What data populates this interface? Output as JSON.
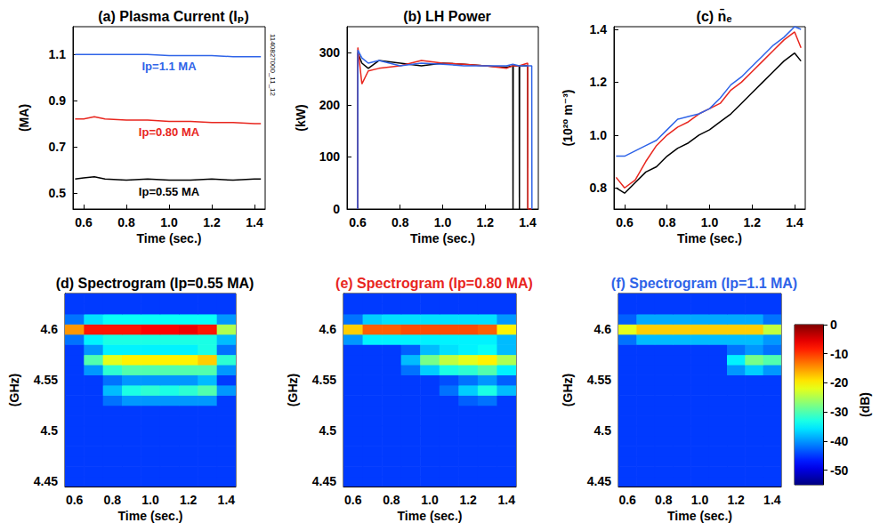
{
  "chart_data": [
    {
      "type": "line",
      "title": "(a) Plasma Current (Iₚ)",
      "xlabel": "Time (sec.)",
      "ylabel": "(MA)",
      "annotation": "1140827000_11_12",
      "x": [
        0.56,
        0.6,
        0.65,
        0.7,
        0.8,
        0.9,
        1.0,
        1.1,
        1.2,
        1.3,
        1.4,
        1.43
      ],
      "series": [
        {
          "name": "Ip=1.1 MA",
          "color": "#2f64e8",
          "values": [
            1.1,
            1.1,
            1.1,
            1.1,
            1.1,
            1.1,
            1.095,
            1.095,
            1.095,
            1.09,
            1.09,
            1.09
          ]
        },
        {
          "name": "Ip=0.80 MA",
          "color": "#e8261e",
          "values": [
            0.82,
            0.82,
            0.83,
            0.82,
            0.815,
            0.815,
            0.81,
            0.81,
            0.805,
            0.805,
            0.8,
            0.8
          ]
        },
        {
          "name": "Ip=0.55 MA",
          "color": "#000000",
          "values": [
            0.56,
            0.565,
            0.57,
            0.56,
            0.555,
            0.56,
            0.555,
            0.555,
            0.56,
            0.555,
            0.56,
            0.56
          ]
        }
      ],
      "xlim": [
        0.55,
        1.45
      ],
      "xticks": [
        0.6,
        0.8,
        {
          "value": 1,
          "label": "1.0"
        },
        1.2,
        1.4
      ],
      "ylim": [
        0.43,
        1.22
      ],
      "yticks": [
        0.5,
        0.7,
        0.9,
        1.1
      ],
      "grid": false
    },
    {
      "type": "line",
      "title": "(b) LH Power",
      "xlabel": "Time (sec.)",
      "ylabel": "(kW)",
      "x": [
        0.6,
        0.601,
        0.62,
        0.65,
        0.7,
        0.8,
        0.9,
        1.0,
        1.1,
        1.2,
        1.3,
        1.33,
        1.331,
        1.332,
        1.36,
        1.361,
        1.362,
        1.4,
        1.401,
        1.419,
        1.42
      ],
      "series": [
        {
          "color": "#000000",
          "values": [
            0,
            300,
            280,
            270,
            285,
            280,
            275,
            280,
            278,
            275,
            272,
            275,
            0,
            275,
            275,
            0,
            275,
            275,
            0,
            0,
            0
          ]
        },
        {
          "color": "#e8261e",
          "values": [
            0,
            310,
            240,
            265,
            270,
            275,
            285,
            280,
            278,
            275,
            270,
            275,
            275,
            275,
            275,
            275,
            275,
            280,
            0,
            0,
            0
          ]
        },
        {
          "color": "#2f64e8",
          "values": [
            0,
            305,
            290,
            280,
            285,
            275,
            280,
            278,
            275,
            275,
            275,
            278,
            278,
            278,
            275,
            275,
            275,
            275,
            275,
            275,
            0
          ]
        }
      ],
      "xlim": [
        0.55,
        1.45
      ],
      "xticks": [
        0.6,
        0.8,
        {
          "value": 1,
          "label": "1.0"
        },
        1.2,
        1.4
      ],
      "ylim": [
        0,
        350
      ],
      "yticks": [
        0,
        100,
        200,
        300
      ],
      "grid": false
    },
    {
      "type": "line",
      "title": "(c) n̄ₑ",
      "xlabel": "Time (sec.)",
      "ylabel": "(10²⁰ m⁻³)",
      "x": [
        0.56,
        0.6,
        0.65,
        0.7,
        0.75,
        0.8,
        0.85,
        0.9,
        0.95,
        1.0,
        1.05,
        1.1,
        1.15,
        1.2,
        1.25,
        1.3,
        1.35,
        1.4,
        1.43
      ],
      "series": [
        {
          "color": "#000000",
          "values": [
            0.8,
            0.78,
            0.82,
            0.86,
            0.88,
            0.92,
            0.95,
            0.97,
            1.0,
            1.02,
            1.05,
            1.08,
            1.12,
            1.16,
            1.2,
            1.24,
            1.28,
            1.31,
            1.28
          ]
        },
        {
          "color": "#e8261e",
          "values": [
            0.84,
            0.8,
            0.83,
            0.9,
            0.96,
            1.0,
            1.03,
            1.05,
            1.08,
            1.1,
            1.12,
            1.17,
            1.2,
            1.24,
            1.28,
            1.32,
            1.36,
            1.39,
            1.33
          ]
        },
        {
          "color": "#2f64e8",
          "values": [
            0.92,
            0.92,
            0.94,
            0.96,
            0.98,
            1.02,
            1.06,
            1.07,
            1.08,
            1.1,
            1.14,
            1.19,
            1.22,
            1.26,
            1.3,
            1.34,
            1.37,
            1.41,
            1.4
          ]
        }
      ],
      "xlim": [
        0.55,
        1.45
      ],
      "xticks": [
        0.6,
        0.8,
        {
          "value": 1,
          "label": "1.0"
        },
        1.2,
        1.4
      ],
      "ylim": [
        0.72,
        1.41
      ],
      "yticks": [
        {
          "value": 0.8,
          "label": "0.8"
        },
        {
          "value": 1,
          "label": "1.0"
        },
        1.2,
        1.4
      ],
      "grid": false
    },
    {
      "type": "heatmap",
      "title": "(d) Spectrogram (Ip=0.55 MA)",
      "color": "#000000",
      "xlabel": "Time (sec.)",
      "ylabel": "(GHz)",
      "x": [
        0.6,
        0.7,
        0.8,
        0.9,
        1,
        1.1,
        1.2,
        1.3,
        1.4
      ],
      "y": [
        4.45,
        4.46,
        4.47,
        4.48,
        4.49,
        4.5,
        4.51,
        4.52,
        4.53,
        4.54,
        4.55,
        4.56,
        4.57,
        4.58,
        4.59,
        4.6,
        4.61,
        4.62,
        4.63
      ],
      "z": [
        [
          -45,
          -45,
          -45,
          -45,
          -45,
          -45,
          -45,
          -45,
          -45
        ],
        [
          -45,
          -45,
          -45,
          -45,
          -45,
          -45,
          -45,
          -45,
          -45
        ],
        [
          -45,
          -45,
          -45,
          -45,
          -45,
          -45,
          -45,
          -45,
          -45
        ],
        [
          -45,
          -45,
          -45,
          -45,
          -45,
          -45,
          -45,
          -45,
          -45
        ],
        [
          -45,
          -45,
          -45,
          -45,
          -45,
          -45,
          -45,
          -45,
          -45
        ],
        [
          -45,
          -45,
          -45,
          -45,
          -45,
          -45,
          -45,
          -45,
          -45
        ],
        [
          -45,
          -45,
          -45,
          -45,
          -45,
          -45,
          -45,
          -45,
          -45
        ],
        [
          -45,
          -45,
          -45,
          -45,
          -45,
          -45,
          -45,
          -45,
          -45
        ],
        [
          -45,
          -45,
          -42,
          -40,
          -40,
          -40,
          -40,
          -40,
          -45
        ],
        [
          -45,
          -45,
          -38,
          -33,
          -32,
          -33,
          -32,
          -30,
          -40
        ],
        [
          -45,
          -45,
          -42,
          -40,
          -40,
          -40,
          -40,
          -38,
          -45
        ],
        [
          -45,
          -40,
          -32,
          -30,
          -30,
          -30,
          -30,
          -30,
          -40
        ],
        [
          -45,
          -30,
          -22,
          -20,
          -20,
          -20,
          -20,
          -18,
          -32
        ],
        [
          -45,
          -40,
          -35,
          -35,
          -35,
          -35,
          -35,
          -33,
          -42
        ],
        [
          -42,
          -35,
          -33,
          -33,
          -33,
          -33,
          -33,
          -33,
          -38
        ],
        [
          -15,
          -8,
          -8,
          -8,
          -7,
          -7,
          -6,
          -8,
          -25
        ],
        [
          -42,
          -36,
          -34,
          -34,
          -34,
          -34,
          -34,
          -34,
          -40
        ],
        [
          -45,
          -45,
          -45,
          -45,
          -45,
          -45,
          -45,
          -45,
          -45
        ],
        [
          -45,
          -45,
          -45,
          -45,
          -45,
          -45,
          -45,
          -45,
          -45
        ]
      ],
      "xlim": [
        0.55,
        1.45
      ],
      "xticks": [
        0.6,
        0.8,
        {
          "value": 1,
          "label": "1.0"
        },
        1.2,
        1.4
      ],
      "ylim": [
        4.445,
        4.635
      ],
      "yticks": [
        4.45,
        4.5,
        4.55,
        4.6
      ],
      "grid": false
    },
    {
      "type": "heatmap",
      "title": "(e) Spectrogram (Ip=0.80 MA)",
      "color": "#e8261e",
      "xlabel": "Time (sec.)",
      "ylabel": "(GHz)",
      "x": [
        0.6,
        0.7,
        0.8,
        0.9,
        1,
        1.1,
        1.2,
        1.3,
        1.4
      ],
      "y": [
        4.45,
        4.46,
        4.47,
        4.48,
        4.49,
        4.5,
        4.51,
        4.52,
        4.53,
        4.54,
        4.55,
        4.56,
        4.57,
        4.58,
        4.59,
        4.6,
        4.61,
        4.62,
        4.63
      ],
      "z": [
        [
          -45,
          -45,
          -45,
          -45,
          -45,
          -45,
          -45,
          -45,
          -45
        ],
        [
          -45,
          -45,
          -45,
          -45,
          -45,
          -45,
          -45,
          -45,
          -45
        ],
        [
          -45,
          -45,
          -45,
          -45,
          -45,
          -45,
          -45,
          -45,
          -45
        ],
        [
          -45,
          -45,
          -45,
          -45,
          -45,
          -45,
          -45,
          -45,
          -45
        ],
        [
          -45,
          -45,
          -45,
          -45,
          -45,
          -45,
          -45,
          -45,
          -45
        ],
        [
          -45,
          -45,
          -45,
          -45,
          -45,
          -45,
          -45,
          -45,
          -45
        ],
        [
          -45,
          -45,
          -45,
          -45,
          -45,
          -45,
          -45,
          -45,
          -45
        ],
        [
          -45,
          -45,
          -45,
          -45,
          -45,
          -45,
          -45,
          -45,
          -45
        ],
        [
          -45,
          -45,
          -45,
          -45,
          -45,
          -45,
          -43,
          -42,
          -45
        ],
        [
          -45,
          -45,
          -45,
          -45,
          -45,
          -42,
          -37,
          -33,
          -38
        ],
        [
          -45,
          -45,
          -45,
          -45,
          -45,
          -44,
          -42,
          -40,
          -43
        ],
        [
          -45,
          -45,
          -45,
          -42,
          -37,
          -33,
          -32,
          -30,
          -35
        ],
        [
          -45,
          -45,
          -45,
          -38,
          -28,
          -24,
          -22,
          -20,
          -25
        ],
        [
          -45,
          -45,
          -45,
          -43,
          -38,
          -36,
          -35,
          -34,
          -38
        ],
        [
          -40,
          -35,
          -35,
          -35,
          -35,
          -35,
          -35,
          -35,
          -38
        ],
        [
          -18,
          -12,
          -12,
          -11,
          -11,
          -11,
          -11,
          -12,
          -20
        ],
        [
          -42,
          -37,
          -36,
          -36,
          -36,
          -36,
          -36,
          -36,
          -40
        ],
        [
          -45,
          -45,
          -45,
          -45,
          -45,
          -45,
          -45,
          -45,
          -45
        ],
        [
          -45,
          -45,
          -45,
          -45,
          -45,
          -45,
          -45,
          -45,
          -45
        ]
      ],
      "xlim": [
        0.55,
        1.45
      ],
      "xticks": [
        0.6,
        0.8,
        {
          "value": 1,
          "label": "1.0"
        },
        1.2,
        1.4
      ],
      "ylim": [
        4.445,
        4.635
      ],
      "yticks": [
        4.45,
        4.5,
        4.55,
        4.6
      ],
      "grid": false
    },
    {
      "type": "heatmap",
      "title": "(f) Spectrogram (Ip=1.1 MA)",
      "color": "#2f64e8",
      "xlabel": "Time (sec.)",
      "ylabel": "(GHz)",
      "x": [
        0.6,
        0.7,
        0.8,
        0.9,
        1,
        1.1,
        1.2,
        1.3,
        1.4
      ],
      "y": [
        4.45,
        4.46,
        4.47,
        4.48,
        4.49,
        4.5,
        4.51,
        4.52,
        4.53,
        4.54,
        4.55,
        4.56,
        4.57,
        4.58,
        4.59,
        4.6,
        4.61,
        4.62,
        4.63
      ],
      "z": [
        [
          -45,
          -45,
          -45,
          -45,
          -45,
          -45,
          -45,
          -45,
          -45
        ],
        [
          -45,
          -45,
          -45,
          -45,
          -45,
          -45,
          -45,
          -45,
          -45
        ],
        [
          -45,
          -45,
          -45,
          -45,
          -45,
          -45,
          -45,
          -45,
          -45
        ],
        [
          -45,
          -45,
          -45,
          -45,
          -45,
          -45,
          -45,
          -45,
          -45
        ],
        [
          -45,
          -45,
          -45,
          -45,
          -45,
          -45,
          -45,
          -45,
          -45
        ],
        [
          -45,
          -45,
          -45,
          -45,
          -45,
          -45,
          -45,
          -45,
          -45
        ],
        [
          -45,
          -45,
          -45,
          -45,
          -45,
          -45,
          -45,
          -45,
          -45
        ],
        [
          -45,
          -45,
          -45,
          -45,
          -45,
          -45,
          -45,
          -45,
          -45
        ],
        [
          -45,
          -45,
          -45,
          -45,
          -45,
          -45,
          -45,
          -45,
          -45
        ],
        [
          -45,
          -45,
          -45,
          -45,
          -45,
          -45,
          -45,
          -45,
          -45
        ],
        [
          -45,
          -45,
          -45,
          -45,
          -45,
          -45,
          -45,
          -45,
          -45
        ],
        [
          -45,
          -45,
          -45,
          -45,
          -45,
          -45,
          -40,
          -37,
          -40
        ],
        [
          -45,
          -45,
          -45,
          -45,
          -45,
          -45,
          -35,
          -28,
          -30
        ],
        [
          -45,
          -45,
          -45,
          -45,
          -45,
          -45,
          -42,
          -40,
          -42
        ],
        [
          -42,
          -38,
          -38,
          -38,
          -38,
          -38,
          -38,
          -38,
          -40
        ],
        [
          -22,
          -18,
          -18,
          -18,
          -18,
          -18,
          -18,
          -18,
          -24
        ],
        [
          -43,
          -39,
          -39,
          -39,
          -39,
          -39,
          -39,
          -39,
          -42
        ],
        [
          -45,
          -45,
          -45,
          -45,
          -45,
          -45,
          -45,
          -45,
          -45
        ],
        [
          -45,
          -45,
          -45,
          -45,
          -45,
          -45,
          -45,
          -45,
          -45
        ]
      ],
      "xlim": [
        0.55,
        1.45
      ],
      "xticks": [
        0.6,
        0.8,
        {
          "value": 1,
          "label": "1.0"
        },
        1.2,
        1.4
      ],
      "ylim": [
        4.445,
        4.635
      ],
      "yticks": [
        4.45,
        4.5,
        4.55,
        4.6
      ],
      "grid": false
    }
  ],
  "colorbar": {
    "zlim": [
      -55,
      0
    ],
    "zticks": [
      0,
      -10,
      -20,
      -30,
      -40,
      -50
    ],
    "label": "(dB)"
  }
}
